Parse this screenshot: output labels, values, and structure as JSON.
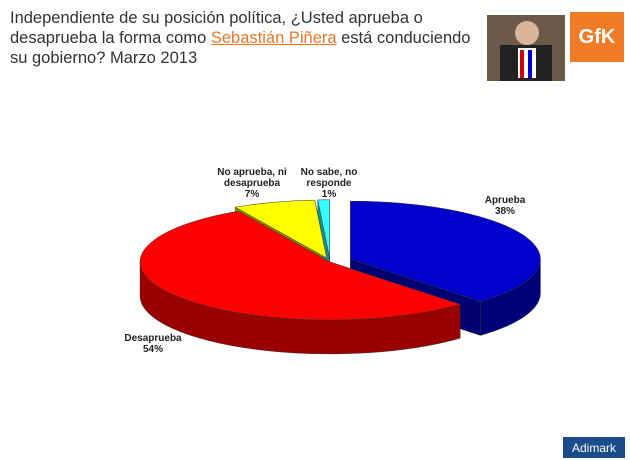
{
  "chart_data": {
    "type": "pie3d",
    "title": {
      "before": "Independiente de su posición política, ¿Usted aprueba o desaprueba la forma como ",
      "highlight": "Sebastián Piñera",
      "after": " está conduciendo su gobierno? Marzo 2013"
    },
    "categories": [
      "Aprueba",
      "Desaprueba",
      "No aprueba, ni desaprueba",
      "No sabe, no responde"
    ],
    "values": [
      38,
      54,
      7,
      1
    ],
    "value_labels": [
      "38%",
      "54%",
      "7%",
      "1%"
    ],
    "colors": [
      "#0000cc",
      "#ff0000",
      "#ffff00",
      "#33ffff"
    ]
  },
  "logos": {
    "top": "GfK",
    "bottom": "Adimark"
  }
}
